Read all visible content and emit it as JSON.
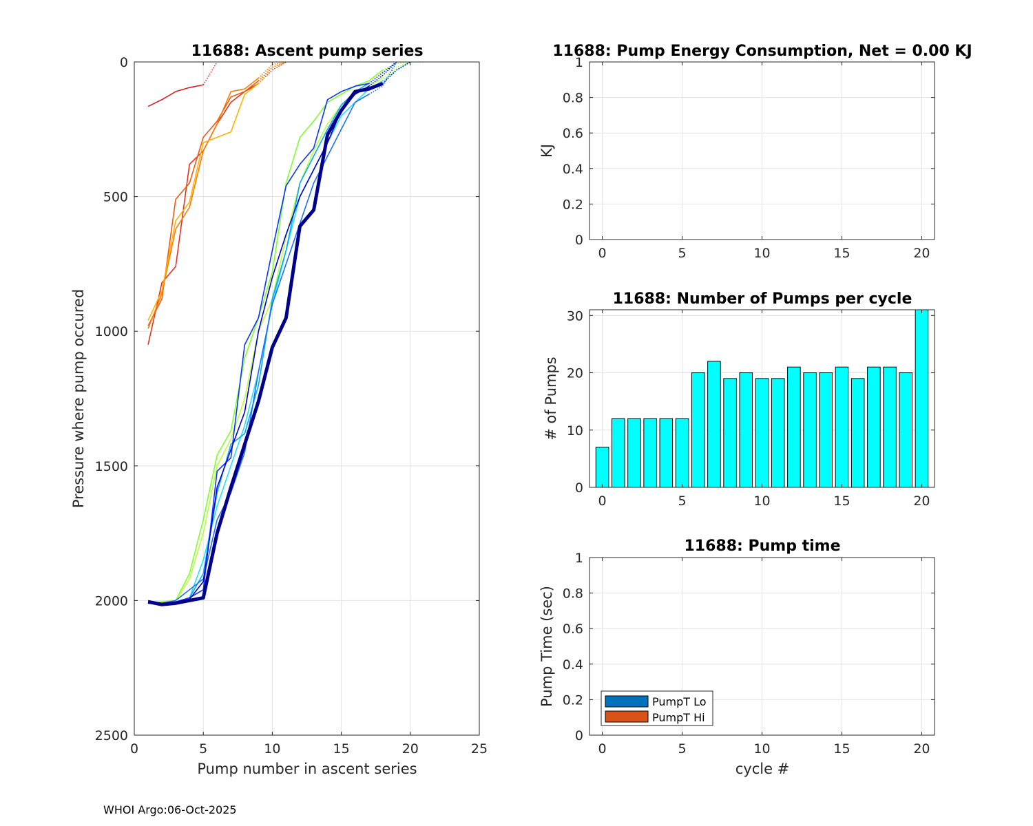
{
  "footer": "WHOI Argo:06-Oct-2025",
  "chart_data": [
    {
      "id": "ascent",
      "type": "line",
      "title": "11688: Ascent pump series",
      "xlabel": "Pump number in ascent series",
      "ylabel": "Pressure where pump occured",
      "xlim": [
        0,
        25
      ],
      "ylim": [
        0,
        2500
      ],
      "yreversed": true,
      "xticks": [
        0,
        5,
        10,
        15,
        20,
        25
      ],
      "yticks": [
        0,
        500,
        1000,
        1500,
        2000,
        2500
      ],
      "grid": true,
      "series": [
        {
          "color": "#e31a1c",
          "x": [
            1,
            2,
            3,
            4,
            5,
            6
          ],
          "y": [
            165,
            140,
            110,
            95,
            85,
            0
          ],
          "dotted_from": 5
        },
        {
          "color": "#e8301c",
          "x": [
            1,
            2,
            3,
            4,
            5,
            6,
            7,
            8,
            9,
            10,
            11
          ],
          "y": [
            1050,
            820,
            760,
            380,
            330,
            230,
            150,
            110,
            80,
            30,
            0
          ],
          "dotted_from": 9
        },
        {
          "color": "#f05a10",
          "x": [
            1,
            2,
            3,
            4,
            5,
            6,
            7,
            8,
            9,
            10,
            11
          ],
          "y": [
            980,
            880,
            510,
            450,
            280,
            220,
            130,
            110,
            70,
            20,
            0
          ],
          "dotted_from": 9
        },
        {
          "color": "#ff7a00",
          "x": [
            1,
            2,
            3,
            4,
            5,
            6,
            7,
            8,
            9,
            10,
            11
          ],
          "y": [
            990,
            860,
            620,
            540,
            330,
            230,
            110,
            100,
            60,
            10,
            0
          ],
          "dotted_from": 9
        },
        {
          "color": "#ffb000",
          "x": [
            1,
            2,
            3,
            4,
            5,
            6,
            7,
            8,
            9,
            10,
            11
          ],
          "y": [
            960,
            850,
            590,
            520,
            300,
            280,
            260,
            120,
            80,
            20,
            0
          ],
          "dotted_from": 9
        },
        {
          "color": "#7fff2a",
          "x": [
            1,
            2,
            3,
            4,
            5,
            6,
            7,
            8,
            9,
            10,
            11,
            12,
            13,
            14,
            15,
            16,
            17,
            18,
            19,
            20,
            21
          ],
          "y": [
            2010,
            2005,
            2000,
            1900,
            1700,
            1460,
            1370,
            1100,
            950,
            780,
            450,
            280,
            220,
            150,
            120,
            90,
            70,
            30,
            5,
            0,
            0
          ],
          "dotted_from": 18
        },
        {
          "color": "#b8ff3a",
          "x": [
            1,
            2,
            3,
            4,
            5,
            6,
            7,
            8,
            9,
            10,
            11,
            12,
            13,
            14,
            15,
            16,
            17,
            18,
            19,
            20
          ],
          "y": [
            2010,
            2010,
            2000,
            1920,
            1750,
            1500,
            1400,
            1250,
            1000,
            880,
            650,
            450,
            330,
            230,
            160,
            120,
            90,
            60,
            20,
            0
          ],
          "dotted_from": 18
        },
        {
          "color": "#20e0ff",
          "x": [
            1,
            2,
            3,
            4,
            5,
            6,
            7,
            8,
            9,
            10,
            11,
            12,
            13,
            14,
            15,
            16,
            17,
            18,
            19,
            20
          ],
          "y": [
            2010,
            2015,
            2005,
            1990,
            1850,
            1650,
            1500,
            1350,
            1150,
            900,
            700,
            500,
            400,
            300,
            200,
            150,
            100,
            70,
            30,
            0
          ],
          "dotted_from": 18
        },
        {
          "color": "#00aaff",
          "x": [
            1,
            2,
            3,
            4,
            5,
            6,
            7,
            8,
            9,
            10,
            11,
            12,
            13,
            14,
            15,
            16,
            17,
            18,
            19
          ],
          "y": [
            2010,
            2010,
            2005,
            1990,
            1900,
            1600,
            1420,
            1380,
            1200,
            880,
            700,
            450,
            350,
            250,
            160,
            110,
            80,
            40,
            0
          ],
          "dotted_from": 17
        },
        {
          "color": "#1a6fff",
          "x": [
            1,
            2,
            3,
            4,
            5,
            6,
            7,
            8,
            9,
            10,
            11,
            12,
            13,
            14,
            15,
            16,
            17,
            18,
            19
          ],
          "y": [
            2000,
            2010,
            2000,
            1960,
            1920,
            1700,
            1600,
            1450,
            1150,
            900,
            750,
            600,
            450,
            350,
            250,
            150,
            120,
            90,
            0
          ],
          "dotted_from": 17
        },
        {
          "color": "#0a35ff",
          "x": [
            1,
            2,
            3,
            4,
            5,
            6,
            7,
            8,
            9,
            10,
            11,
            12,
            13,
            14,
            15,
            16,
            17,
            18,
            19
          ],
          "y": [
            2010,
            2015,
            2005,
            1990,
            1960,
            1520,
            1470,
            1050,
            950,
            700,
            460,
            380,
            320,
            140,
            110,
            90,
            80,
            40,
            0
          ],
          "dotted_from": 17
        },
        {
          "color": "#0000d0",
          "x": [
            1,
            2,
            3,
            4,
            5,
            6,
            7,
            8,
            9,
            10,
            11,
            12,
            13,
            14,
            15,
            16,
            17,
            18,
            19
          ],
          "y": [
            2005,
            2010,
            2005,
            1995,
            1930,
            1580,
            1440,
            1300,
            1000,
            800,
            640,
            500,
            400,
            300,
            180,
            120,
            90,
            50,
            0
          ],
          "dotted_from": 17
        },
        {
          "color": "#00008a",
          "x": [
            1,
            2,
            3,
            4,
            5,
            6,
            7,
            8,
            9,
            10,
            11,
            12,
            13,
            14,
            15,
            16,
            17,
            18,
            19,
            20
          ],
          "y": [
            2005,
            2015,
            2010,
            2000,
            1990,
            1750,
            1580,
            1420,
            1260,
            1060,
            950,
            610,
            550,
            270,
            180,
            110,
            100,
            80,
            30,
            0
          ],
          "dotted_from": 18,
          "bold": true
        }
      ]
    },
    {
      "id": "energy",
      "type": "bar",
      "title": "11688: Pump Energy Consumption,  Net =   0.00 KJ",
      "xlabel": "",
      "ylabel": "KJ",
      "xlim": [
        -0.8,
        20.8
      ],
      "ylim": [
        0,
        1
      ],
      "xticks": [
        0,
        5,
        10,
        15,
        20
      ],
      "yticks": [
        "0",
        "0.2",
        "0.4",
        "0.6",
        "0.8",
        "1"
      ],
      "grid": true,
      "values": []
    },
    {
      "id": "pumps",
      "type": "bar",
      "title": "11688: Number of Pumps per cycle",
      "xlabel": "",
      "ylabel": "# of Pumps",
      "xlim": [
        -0.8,
        20.8
      ],
      "ylim": [
        0,
        31
      ],
      "xticks": [
        0,
        5,
        10,
        15,
        20
      ],
      "yticks": [
        0,
        10,
        20,
        30
      ],
      "grid": true,
      "bar_color": "#00ffff",
      "categories": [
        0,
        1,
        2,
        3,
        4,
        5,
        6,
        7,
        8,
        9,
        10,
        11,
        12,
        13,
        14,
        15,
        16,
        17,
        18,
        19,
        20
      ],
      "values": [
        7,
        12,
        12,
        12,
        12,
        12,
        20,
        22,
        19,
        20,
        19,
        19,
        21,
        20,
        20,
        21,
        19,
        21,
        21,
        20,
        31
      ]
    },
    {
      "id": "ptime",
      "type": "bar",
      "title": "11688: Pump time",
      "xlabel": "cycle #",
      "ylabel": "Pump Time (sec)",
      "xlim": [
        -0.8,
        20.8
      ],
      "ylim": [
        0,
        1
      ],
      "xticks": [
        0,
        5,
        10,
        15,
        20
      ],
      "yticks": [
        "0",
        "0.2",
        "0.4",
        "0.6",
        "0.8",
        "1"
      ],
      "grid": true,
      "legend": [
        {
          "label": "PumpT Lo",
          "color": "#0072bd"
        },
        {
          "label": "PumpT Hi",
          "color": "#d95319"
        }
      ],
      "values": []
    }
  ]
}
